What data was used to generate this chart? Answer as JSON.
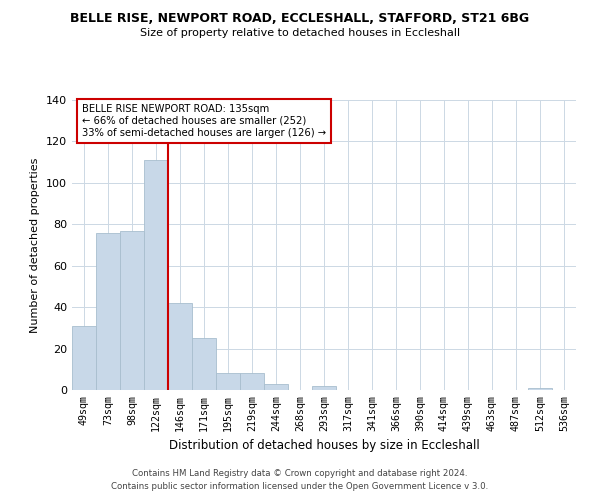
{
  "title": "BELLE RISE, NEWPORT ROAD, ECCLESHALL, STAFFORD, ST21 6BG",
  "subtitle": "Size of property relative to detached houses in Eccleshall",
  "xlabel": "Distribution of detached houses by size in Eccleshall",
  "ylabel": "Number of detached properties",
  "bar_labels": [
    "49sqm",
    "73sqm",
    "98sqm",
    "122sqm",
    "146sqm",
    "171sqm",
    "195sqm",
    "219sqm",
    "244sqm",
    "268sqm",
    "293sqm",
    "317sqm",
    "341sqm",
    "366sqm",
    "390sqm",
    "414sqm",
    "439sqm",
    "463sqm",
    "487sqm",
    "512sqm",
    "536sqm"
  ],
  "bar_values": [
    31,
    76,
    77,
    111,
    42,
    25,
    8,
    8,
    3,
    0,
    2,
    0,
    0,
    0,
    0,
    0,
    0,
    0,
    0,
    1,
    0
  ],
  "bar_color": "#c8d8e8",
  "bar_edge_color": "#a8bece",
  "vline_x": 3.5,
  "vline_color": "#cc0000",
  "ylim": [
    0,
    140
  ],
  "annotation_title": "BELLE RISE NEWPORT ROAD: 135sqm",
  "annotation_line1": "← 66% of detached houses are smaller (252)",
  "annotation_line2": "33% of semi-detached houses are larger (126) →",
  "annotation_box_color": "#ffffff",
  "annotation_box_edge": "#cc0000",
  "footer1": "Contains HM Land Registry data © Crown copyright and database right 2024.",
  "footer2": "Contains public sector information licensed under the Open Government Licence v 3.0.",
  "background_color": "#ffffff",
  "grid_color": "#ccd8e4"
}
